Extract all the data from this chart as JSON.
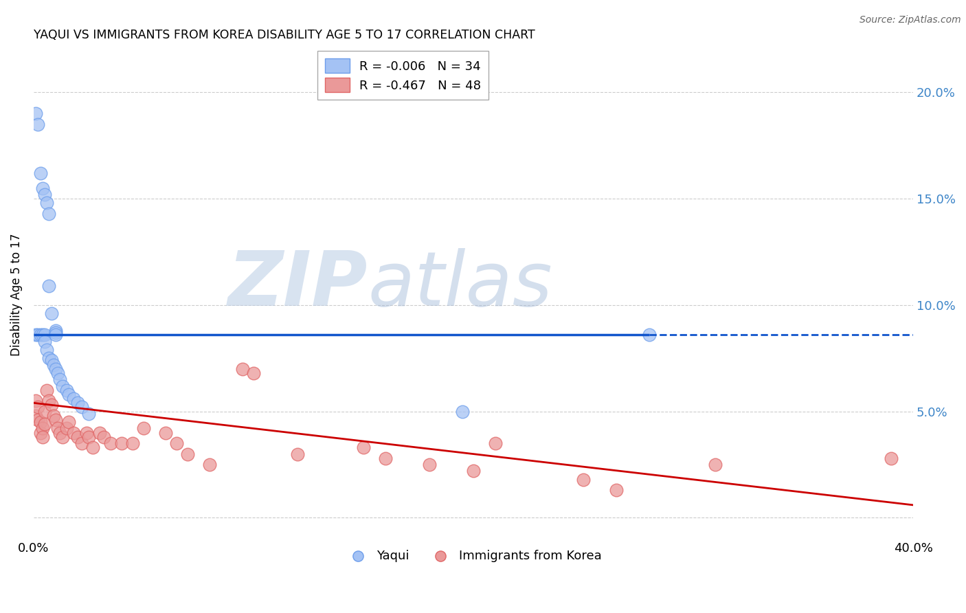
{
  "title": "YAQUI VS IMMIGRANTS FROM KOREA DISABILITY AGE 5 TO 17 CORRELATION CHART",
  "source": "Source: ZipAtlas.com",
  "ylabel": "Disability Age 5 to 17",
  "xlim": [
    0.0,
    0.4
  ],
  "ylim": [
    -0.01,
    0.22
  ],
  "xticks": [
    0.0,
    0.05,
    0.1,
    0.15,
    0.2,
    0.25,
    0.3,
    0.35,
    0.4
  ],
  "yticks_left": [
    0.0,
    0.05,
    0.1,
    0.15,
    0.2
  ],
  "yticks_right": [
    0.0,
    0.05,
    0.1,
    0.15,
    0.2
  ],
  "yticklabels_right": [
    "",
    "5.0%",
    "10.0%",
    "15.0%",
    "20.0%"
  ],
  "legend_blue_r": "R = -0.006",
  "legend_blue_n": "N = 34",
  "legend_pink_r": "R = -0.467",
  "legend_pink_n": "N = 48",
  "blue_color": "#a4c2f4",
  "pink_color": "#ea9999",
  "blue_edge_color": "#6d9eeb",
  "pink_edge_color": "#e06666",
  "blue_line_color": "#1155cc",
  "pink_line_color": "#cc0000",
  "watermark_zip": "ZIP",
  "watermark_atlas": "atlas",
  "yaqui_x": [
    0.001,
    0.002,
    0.003,
    0.004,
    0.005,
    0.005,
    0.006,
    0.007,
    0.008,
    0.009,
    0.01,
    0.011,
    0.012,
    0.013,
    0.015,
    0.016,
    0.018,
    0.02,
    0.022,
    0.025,
    0.001,
    0.002,
    0.003,
    0.004,
    0.005,
    0.006,
    0.007,
    0.007,
    0.008,
    0.01,
    0.01,
    0.01,
    0.195,
    0.28
  ],
  "yaqui_y": [
    0.086,
    0.086,
    0.086,
    0.086,
    0.086,
    0.083,
    0.079,
    0.075,
    0.074,
    0.072,
    0.07,
    0.068,
    0.065,
    0.062,
    0.06,
    0.058,
    0.056,
    0.054,
    0.052,
    0.049,
    0.19,
    0.185,
    0.162,
    0.155,
    0.152,
    0.148,
    0.143,
    0.109,
    0.096,
    0.088,
    0.087,
    0.086,
    0.05,
    0.086
  ],
  "korea_x": [
    0.001,
    0.001,
    0.002,
    0.002,
    0.003,
    0.003,
    0.004,
    0.004,
    0.005,
    0.005,
    0.006,
    0.007,
    0.008,
    0.009,
    0.01,
    0.011,
    0.012,
    0.013,
    0.015,
    0.016,
    0.018,
    0.02,
    0.022,
    0.024,
    0.025,
    0.027,
    0.03,
    0.032,
    0.035,
    0.04,
    0.045,
    0.05,
    0.06,
    0.065,
    0.07,
    0.08,
    0.095,
    0.1,
    0.12,
    0.15,
    0.16,
    0.18,
    0.2,
    0.21,
    0.25,
    0.265,
    0.31,
    0.39
  ],
  "korea_y": [
    0.055,
    0.048,
    0.052,
    0.046,
    0.045,
    0.04,
    0.042,
    0.038,
    0.05,
    0.044,
    0.06,
    0.055,
    0.053,
    0.048,
    0.046,
    0.042,
    0.04,
    0.038,
    0.042,
    0.045,
    0.04,
    0.038,
    0.035,
    0.04,
    0.038,
    0.033,
    0.04,
    0.038,
    0.035,
    0.035,
    0.035,
    0.042,
    0.04,
    0.035,
    0.03,
    0.025,
    0.07,
    0.068,
    0.03,
    0.033,
    0.028,
    0.025,
    0.022,
    0.035,
    0.018,
    0.013,
    0.025,
    0.028
  ],
  "blue_trend_x0": 0.0,
  "blue_trend_x1": 0.28,
  "blue_trend_x1_dash": 0.4,
  "blue_trend_y": 0.086,
  "pink_trend_x0": 0.0,
  "pink_trend_x1": 0.4,
  "pink_trend_y0": 0.054,
  "pink_trend_y1": 0.006,
  "background_color": "#ffffff",
  "grid_color": "#cccccc"
}
